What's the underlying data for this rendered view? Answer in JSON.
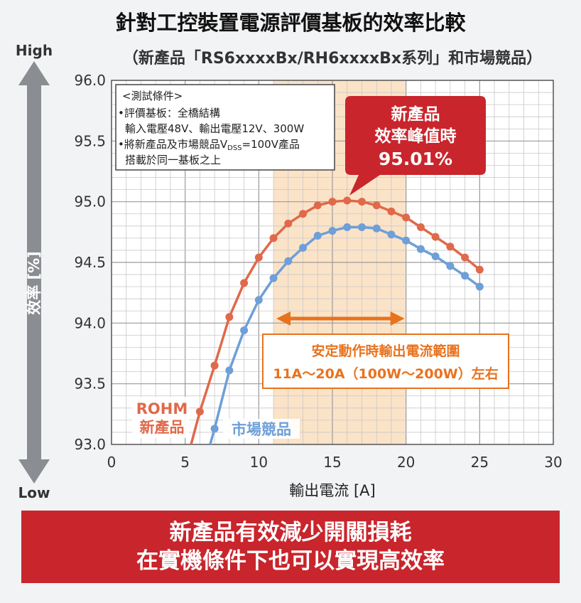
{
  "chart_data": {
    "type": "line",
    "title": "針對工控裝置電源評價基板的效率比較",
    "subtitle": "（新產品「RS6xxxxBx/RH6xxxxBx系列」和市場競品）",
    "xlabel": "輸出電流 [A]",
    "ylabel": "效率 [%]",
    "y_high_label": "High",
    "y_low_label": "Low",
    "xlim": [
      0,
      30
    ],
    "ylim": [
      93.0,
      96.0
    ],
    "x_ticks": [
      "0",
      "5",
      "10",
      "15",
      "20",
      "25",
      "30"
    ],
    "y_ticks": [
      "93.0",
      "93.5",
      "94.0",
      "94.5",
      "95.0",
      "95.5",
      "96.0"
    ],
    "grid": true,
    "series": [
      {
        "name": "ROHM 新產品",
        "label_lines": [
          "ROHM",
          "新產品"
        ],
        "color": "#e0694a",
        "curve": [
          [
            5.4,
            93.0
          ],
          [
            6.0,
            93.27
          ],
          [
            7.0,
            93.65
          ],
          [
            8.0,
            94.05
          ],
          [
            9.0,
            94.33
          ],
          [
            10.0,
            94.54
          ],
          [
            11.0,
            94.7
          ],
          [
            12.0,
            94.82
          ],
          [
            13.0,
            94.9
          ],
          [
            14.0,
            94.97
          ],
          [
            15.0,
            95.0
          ],
          [
            16.0,
            95.01
          ],
          [
            17.0,
            95.0
          ],
          [
            18.0,
            94.97
          ],
          [
            19.0,
            94.92
          ],
          [
            20.0,
            94.87
          ],
          [
            21.0,
            94.79
          ],
          [
            22.0,
            94.71
          ],
          [
            23.0,
            94.63
          ],
          [
            24.0,
            94.54
          ],
          [
            25.0,
            94.44
          ]
        ],
        "points": [
          [
            6,
            93.27
          ],
          [
            7,
            93.65
          ],
          [
            8,
            94.05
          ],
          [
            9,
            94.33
          ],
          [
            10,
            94.54
          ],
          [
            11,
            94.7
          ],
          [
            12,
            94.82
          ],
          [
            13,
            94.9
          ],
          [
            14,
            94.97
          ],
          [
            15,
            95.0
          ],
          [
            16,
            95.01
          ],
          [
            17,
            95.0
          ],
          [
            18,
            94.97
          ],
          [
            19,
            94.92
          ],
          [
            20,
            94.87
          ],
          [
            21,
            94.79
          ],
          [
            22,
            94.71
          ],
          [
            23,
            94.63
          ],
          [
            24,
            94.54
          ],
          [
            25,
            94.44
          ]
        ]
      },
      {
        "name": "市場競品",
        "label_lines": [
          "市場競品"
        ],
        "color": "#6e9fd8",
        "curve": [
          [
            6.7,
            93.0
          ],
          [
            7.0,
            93.13
          ],
          [
            8.0,
            93.61
          ],
          [
            9.0,
            93.94
          ],
          [
            10.0,
            94.19
          ],
          [
            11.0,
            94.37
          ],
          [
            12.0,
            94.51
          ],
          [
            13.0,
            94.62
          ],
          [
            14.0,
            94.72
          ],
          [
            15.0,
            94.76
          ],
          [
            16.0,
            94.79
          ],
          [
            17.0,
            94.79
          ],
          [
            18.0,
            94.78
          ],
          [
            19.0,
            94.73
          ],
          [
            20.0,
            94.68
          ],
          [
            21.0,
            94.61
          ],
          [
            22.0,
            94.55
          ],
          [
            23.0,
            94.47
          ],
          [
            24.0,
            94.39
          ],
          [
            25.0,
            94.3
          ]
        ],
        "points": [
          [
            7,
            93.13
          ],
          [
            8,
            93.61
          ],
          [
            9,
            93.94
          ],
          [
            10,
            94.19
          ],
          [
            11,
            94.37
          ],
          [
            12,
            94.51
          ],
          [
            13,
            94.62
          ],
          [
            14,
            94.72
          ],
          [
            15,
            94.76
          ],
          [
            16,
            94.79
          ],
          [
            17,
            94.79
          ],
          [
            18,
            94.78
          ],
          [
            19,
            94.73
          ],
          [
            20,
            94.68
          ],
          [
            21,
            94.61
          ],
          [
            22,
            94.55
          ],
          [
            23,
            94.47
          ],
          [
            24,
            94.39
          ],
          [
            25,
            94.3
          ]
        ]
      }
    ],
    "stable_range": {
      "from": 11,
      "to": 20,
      "color": "#fbe3c8"
    },
    "test_conditions": {
      "heading": "<測試條件>",
      "lines": [
        "•評價基板：全橋結構",
        "  輸入電壓48V、輸出電壓12V、300W",
        "•將新產品及市場競品V",
        "  搭載於同一基板之上"
      ],
      "vdss_prefix": "•將新產品及市場競品V",
      "vdss_sub": "DSS",
      "vdss_suffix": "=100V產品"
    },
    "peak_callout": {
      "lines": [
        "新產品",
        "效率峰值時",
        "95.01%"
      ],
      "color": "#c9252c"
    },
    "range_callout": {
      "lines": [
        "安定動作時輸出電流範圍",
        "11A～20A（100W～200W）左右"
      ],
      "color": "#e8731e"
    }
  },
  "banner": {
    "line1": "新產品有效減少開關損耗",
    "line2": "在實機條件下也可以實現高效率"
  }
}
